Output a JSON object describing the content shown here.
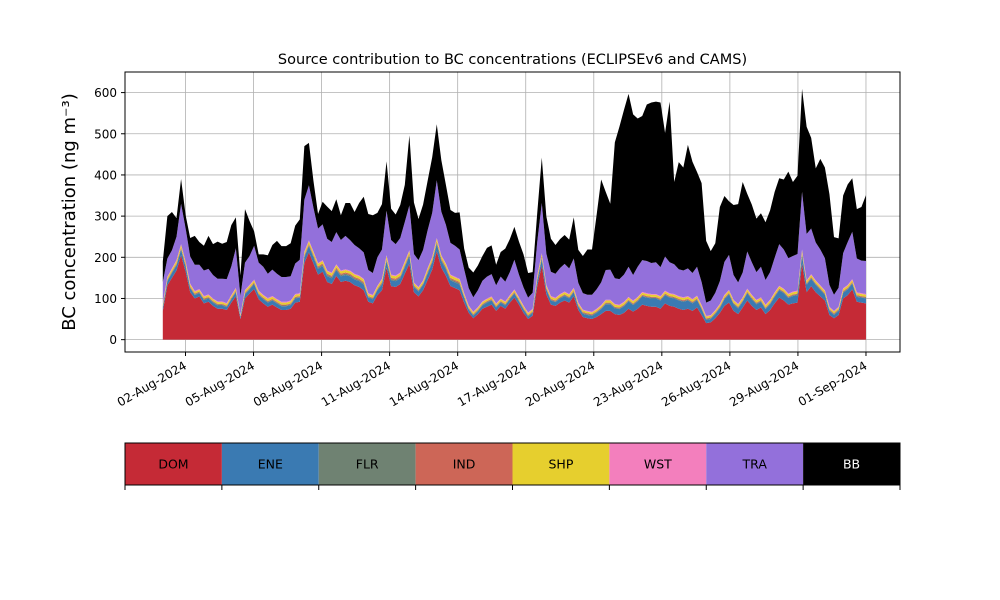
{
  "chart_data": {
    "type": "area",
    "stacked": true,
    "title": "Source contribution to BC concentrations (ECLIPSEv6 and CAMS)",
    "ylabel": "BC concentration (ng m⁻³)",
    "xlabel": "",
    "ylim": [
      -30,
      650
    ],
    "yticks": [
      0,
      100,
      200,
      300,
      400,
      500,
      600
    ],
    "grid": true,
    "x_start": "2024-08-01",
    "x_end": "2024-09-01",
    "xlim": [
      "2024-07-30T08:00",
      "2024-09-02T12:00"
    ],
    "xticks": [
      "2024-08-02",
      "2024-08-05",
      "2024-08-08",
      "2024-08-11",
      "2024-08-14",
      "2024-08-17",
      "2024-08-20",
      "2024-08-23",
      "2024-08-26",
      "2024-08-29",
      "2024-09-01"
    ],
    "xtick_labels": [
      "02-Aug-2024",
      "05-Aug-2024",
      "08-Aug-2024",
      "11-Aug-2024",
      "14-Aug-2024",
      "17-Aug-2024",
      "20-Aug-2024",
      "23-Aug-2024",
      "26-Aug-2024",
      "29-Aug-2024",
      "01-Sep-2024"
    ],
    "series": [
      {
        "name": "DOM",
        "color": "#c52a36",
        "values": [
          70,
          132,
          150,
          168,
          205,
          165,
          115,
          100,
          105,
          88,
          92,
          82,
          75,
          75,
          72,
          90,
          105,
          50,
          100,
          112,
          123,
          98,
          88,
          80,
          85,
          78,
          72,
          72,
          75,
          90,
          92,
          186,
          212,
          185,
          158,
          165,
          140,
          135,
          155,
          140,
          143,
          140,
          132,
          128,
          120,
          92,
          88,
          108,
          120,
          175,
          130,
          128,
          135,
          160,
          185,
          115,
          105,
          120,
          145,
          170,
          215,
          175,
          155,
          130,
          125,
          120,
          90,
          65,
          52,
          62,
          75,
          80,
          85,
          70,
          82,
          75,
          90,
          102,
          85,
          65,
          50,
          58,
          130,
          180,
          110,
          85,
          82,
          90,
          95,
          90,
          105,
          72,
          55,
          52,
          50,
          55,
          62,
          70,
          70,
          62,
          60,
          65,
          75,
          68,
          75,
          85,
          82,
          80,
          80,
          75,
          88,
          82,
          80,
          75,
          72,
          75,
          70,
          78,
          60,
          40,
          42,
          52,
          65,
          82,
          90,
          70,
          62,
          78,
          95,
          82,
          72,
          78,
          62,
          72,
          88,
          102,
          95,
          85,
          88,
          90,
          185,
          115,
          130,
          115,
          105,
          95,
          60,
          52,
          60,
          100,
          108,
          122,
          92,
          90,
          88
        ]
      },
      {
        "name": "ENE",
        "color": "#3a7ab2",
        "values": [
          8,
          10,
          12,
          12,
          14,
          12,
          10,
          8,
          8,
          8,
          8,
          8,
          8,
          8,
          7,
          8,
          10,
          5,
          10,
          10,
          12,
          10,
          10,
          10,
          10,
          10,
          9,
          9,
          9,
          10,
          10,
          14,
          15,
          15,
          14,
          14,
          14,
          14,
          14,
          14,
          14,
          14,
          14,
          14,
          14,
          10,
          10,
          12,
          14,
          16,
          14,
          14,
          14,
          16,
          18,
          13,
          12,
          13,
          15,
          17,
          18,
          16,
          16,
          14,
          14,
          14,
          12,
          8,
          6,
          7,
          8,
          10,
          10,
          8,
          8,
          8,
          8,
          10,
          8,
          8,
          6,
          7,
          12,
          16,
          12,
          10,
          9,
          10,
          11,
          10,
          10,
          8,
          8,
          8,
          8,
          10,
          12,
          16,
          16,
          14,
          14,
          16,
          18,
          16,
          18,
          20,
          20,
          20,
          20,
          20,
          20,
          20,
          20,
          20,
          20,
          20,
          18,
          18,
          14,
          8,
          8,
          10,
          12,
          16,
          20,
          16,
          14,
          14,
          18,
          16,
          14,
          14,
          12,
          14,
          16,
          18,
          18,
          16,
          18,
          18,
          20,
          18,
          18,
          18,
          16,
          14,
          10,
          8,
          10,
          14,
          14,
          14,
          12,
          12,
          12
        ]
      },
      {
        "name": "FLR",
        "color": "#6f8272",
        "values": [
          2,
          2,
          2,
          2,
          2,
          2,
          2,
          2,
          2,
          2,
          2,
          2,
          2,
          2,
          2,
          2,
          2,
          1,
          2,
          2,
          2,
          2,
          2,
          2,
          2,
          2,
          2,
          2,
          2,
          2,
          2,
          3,
          3,
          3,
          3,
          3,
          3,
          3,
          3,
          3,
          3,
          3,
          3,
          3,
          3,
          2,
          2,
          2,
          3,
          3,
          3,
          3,
          3,
          3,
          3,
          2,
          2,
          2,
          3,
          3,
          3,
          3,
          3,
          3,
          3,
          3,
          2,
          2,
          2,
          2,
          2,
          2,
          2,
          2,
          2,
          2,
          2,
          2,
          2,
          2,
          2,
          2,
          3,
          3,
          2,
          2,
          2,
          2,
          2,
          2,
          2,
          2,
          2,
          2,
          2,
          2,
          2,
          2,
          2,
          2,
          2,
          2,
          2,
          2,
          2,
          2,
          2,
          2,
          2,
          2,
          2,
          2,
          2,
          2,
          2,
          2,
          2,
          2,
          2,
          2,
          2,
          2,
          2,
          2,
          2,
          2,
          2,
          2,
          2,
          2,
          2,
          2,
          2,
          2,
          2,
          2,
          2,
          2,
          2,
          2,
          3,
          2,
          2,
          2,
          2,
          2,
          2,
          2,
          2,
          2,
          2,
          2,
          2,
          2,
          2
        ]
      },
      {
        "name": "IND",
        "color": "#cd6657",
        "values": [
          2,
          2,
          2,
          3,
          3,
          3,
          2,
          2,
          2,
          2,
          2,
          2,
          2,
          2,
          2,
          2,
          2,
          1,
          2,
          2,
          2,
          2,
          2,
          2,
          2,
          2,
          2,
          2,
          2,
          2,
          2,
          3,
          3,
          3,
          3,
          3,
          3,
          3,
          3,
          3,
          3,
          3,
          3,
          3,
          3,
          2,
          2,
          2,
          3,
          3,
          3,
          3,
          3,
          3,
          3,
          2,
          2,
          2,
          3,
          3,
          3,
          3,
          3,
          3,
          3,
          3,
          2,
          2,
          2,
          2,
          2,
          2,
          2,
          2,
          2,
          2,
          2,
          2,
          2,
          2,
          2,
          2,
          3,
          3,
          2,
          2,
          2,
          2,
          2,
          2,
          2,
          2,
          2,
          2,
          2,
          2,
          2,
          2,
          2,
          2,
          2,
          2,
          2,
          2,
          2,
          2,
          2,
          2,
          2,
          2,
          2,
          2,
          2,
          2,
          2,
          2,
          2,
          2,
          2,
          2,
          2,
          2,
          2,
          2,
          2,
          2,
          2,
          2,
          2,
          2,
          2,
          2,
          2,
          2,
          2,
          2,
          2,
          2,
          2,
          2,
          3,
          2,
          2,
          2,
          2,
          2,
          2,
          2,
          2,
          2,
          2,
          2,
          2,
          2,
          2
        ]
      },
      {
        "name": "SHP",
        "color": "#e6cf2e",
        "values": [
          4,
          5,
          5,
          6,
          6,
          6,
          5,
          4,
          4,
          4,
          4,
          4,
          4,
          4,
          4,
          4,
          5,
          3,
          5,
          5,
          5,
          5,
          5,
          5,
          5,
          5,
          5,
          5,
          5,
          5,
          5,
          6,
          6,
          6,
          6,
          6,
          6,
          6,
          6,
          6,
          6,
          6,
          6,
          6,
          6,
          5,
          5,
          5,
          6,
          6,
          6,
          6,
          6,
          6,
          6,
          5,
          5,
          5,
          6,
          6,
          6,
          6,
          6,
          6,
          6,
          6,
          5,
          4,
          4,
          4,
          4,
          4,
          4,
          4,
          4,
          4,
          4,
          4,
          4,
          4,
          4,
          4,
          6,
          6,
          5,
          5,
          5,
          5,
          5,
          5,
          5,
          4,
          4,
          4,
          4,
          4,
          4,
          5,
          5,
          5,
          5,
          5,
          5,
          5,
          5,
          5,
          5,
          5,
          5,
          5,
          5,
          5,
          5,
          5,
          5,
          5,
          5,
          5,
          4,
          4,
          4,
          4,
          4,
          5,
          5,
          5,
          5,
          5,
          5,
          5,
          5,
          5,
          5,
          5,
          5,
          5,
          5,
          5,
          5,
          5,
          6,
          5,
          5,
          5,
          5,
          5,
          4,
          4,
          4,
          5,
          5,
          5,
          5,
          5,
          5
        ]
      },
      {
        "name": "WST",
        "color": "#f37fbd",
        "values": [
          2,
          2,
          2,
          2,
          2,
          2,
          2,
          2,
          2,
          2,
          2,
          2,
          2,
          2,
          2,
          2,
          2,
          1,
          2,
          2,
          2,
          2,
          2,
          2,
          2,
          2,
          2,
          2,
          2,
          2,
          2,
          2,
          2,
          2,
          2,
          2,
          2,
          2,
          2,
          2,
          2,
          2,
          2,
          2,
          2,
          2,
          2,
          2,
          2,
          2,
          2,
          2,
          2,
          2,
          2,
          2,
          2,
          2,
          2,
          2,
          2,
          2,
          2,
          2,
          2,
          2,
          2,
          2,
          2,
          2,
          2,
          2,
          2,
          2,
          2,
          2,
          2,
          2,
          2,
          2,
          2,
          2,
          2,
          2,
          2,
          2,
          2,
          2,
          2,
          2,
          2,
          2,
          2,
          2,
          2,
          2,
          2,
          2,
          2,
          2,
          2,
          2,
          2,
          2,
          2,
          2,
          2,
          2,
          2,
          2,
          2,
          2,
          2,
          2,
          2,
          2,
          2,
          2,
          2,
          2,
          2,
          2,
          2,
          2,
          2,
          2,
          2,
          2,
          2,
          2,
          2,
          2,
          2,
          2,
          2,
          2,
          2,
          2,
          2,
          2,
          2,
          2,
          2,
          2,
          2,
          2,
          2,
          2,
          2,
          2,
          2,
          2,
          2,
          2,
          2
        ]
      },
      {
        "name": "TRA",
        "color": "#9370db",
        "values": [
          52,
          44,
          44,
          57,
          98,
          80,
          66,
          64,
          59,
          62,
          62,
          57,
          55,
          55,
          58,
          70,
          96,
          45,
          66,
          70,
          82,
          68,
          68,
          59,
          64,
          61,
          60,
          60,
          59,
          74,
          81,
          126,
          134,
          106,
          84,
          87,
          77,
          74,
          78,
          74,
          81,
          74,
          70,
          66,
          64,
          56,
          53,
          69,
          71,
          108,
          84,
          76,
          84,
          96,
          109,
          69,
          65,
          74,
          92,
          107,
          140,
          106,
          94,
          77,
          75,
          71,
          58,
          42,
          35,
          41,
          50,
          53,
          54,
          44,
          53,
          48,
          56,
          72,
          55,
          44,
          36,
          39,
          81,
          122,
          76,
          59,
          58,
          63,
          67,
          62,
          71,
          48,
          40,
          39,
          41,
          47,
          55,
          72,
          73,
          62,
          62,
          66,
          73,
          62,
          73,
          77,
          78,
          75,
          77,
          70,
          83,
          75,
          72,
          65,
          65,
          67,
          63,
          70,
          56,
          32,
          35,
          42,
          55,
          80,
          85,
          60,
          52,
          60,
          90,
          79,
          67,
          74,
          60,
          67,
          84,
          101,
          95,
          86,
          86,
          89,
          140,
          113,
          111,
          92,
          87,
          78,
          53,
          39,
          46,
          85,
          104,
          115,
          82,
          79,
          80
        ]
      },
      {
        "name": "BB",
        "color": "#000000",
        "values": [
          50,
          103,
          93,
          45,
          60,
          32,
          45,
          70,
          55,
          60,
          80,
          75,
          90,
          85,
          90,
          100,
          75,
          50,
          130,
          85,
          35,
          20,
          30,
          45,
          60,
          80,
          75,
          75,
          80,
          92,
          98,
          130,
          103,
          65,
          35,
          55,
          78,
          75,
          80,
          60,
          80,
          90,
          80,
          110,
          135,
          136,
          140,
          108,
          110,
          120,
          76,
          72,
          80,
          90,
          170,
          125,
          100,
          110,
          120,
          135,
          136,
          125,
          97,
          80,
          80,
          90,
          50,
          50,
          60,
          60,
          60,
          70,
          70,
          50,
          60,
          80,
          80,
          80,
          80,
          80,
          60,
          50,
          70,
          110,
          90,
          80,
          70,
          70,
          70,
          70,
          100,
          80,
          90,
          110,
          110,
          180,
          250,
          190,
          160,
          330,
          370,
          400,
          420,
          390,
          360,
          350,
          380,
          390,
          390,
          400,
          300,
          390,
          200,
          260,
          250,
          300,
          270,
          230,
          240,
          150,
          120,
          120,
          180,
          160,
          130,
          170,
          190,
          220,
          140,
          140,
          130,
          130,
          140,
          150,
          160,
          160,
          170,
          210,
          180,
          190,
          250,
          260,
          220,
          180,
          220,
          220,
          220,
          140,
          120,
          140,
          140,
          130,
          120,
          130,
          160
        ]
      }
    ],
    "legend": {
      "placement": "below",
      "entries": [
        "DOM",
        "ENE",
        "FLR",
        "IND",
        "SHP",
        "WST",
        "TRA",
        "BB"
      ]
    }
  }
}
